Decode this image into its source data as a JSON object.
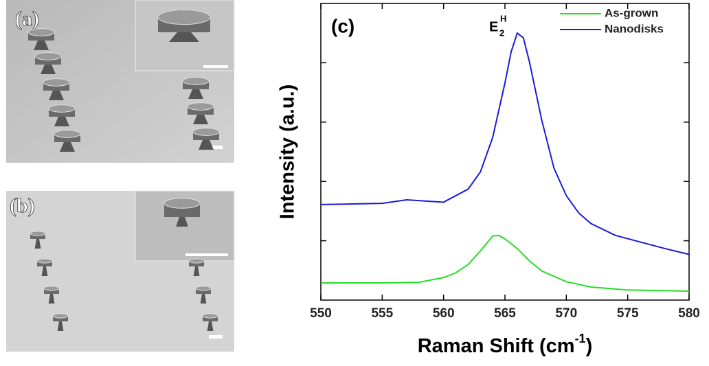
{
  "panels": [
    {
      "label": "(a)"
    },
    {
      "label": "(b)"
    }
  ],
  "chart_data": {
    "type": "line",
    "panel_label": "(c)",
    "peak_label": {
      "base": "E",
      "sub": "2",
      "sup": "H"
    },
    "x_label": {
      "text": "Raman Shift (cm",
      "sup": "-1",
      "end": ")"
    },
    "y_label": "Intensity (a.u.)",
    "xlim": [
      550,
      580
    ],
    "xticks": [
      550,
      555,
      560,
      565,
      570,
      575,
      580
    ],
    "ylim": [
      0,
      5
    ],
    "yticks": [
      1,
      2,
      3,
      4
    ],
    "legend": "upper right",
    "series": [
      {
        "name": "As-grown",
        "color": "#22e022",
        "x": [
          550,
          555,
          558,
          560,
          561,
          562,
          563,
          564,
          564.5,
          565,
          566,
          567,
          568,
          570,
          572,
          575,
          580
        ],
        "values": [
          0.29,
          0.29,
          0.3,
          0.38,
          0.46,
          0.6,
          0.83,
          1.08,
          1.09,
          1.03,
          0.87,
          0.66,
          0.49,
          0.31,
          0.22,
          0.17,
          0.15
        ]
      },
      {
        "name": "Nanodisks",
        "color": "#1a1ad8",
        "x": [
          550,
          555,
          557,
          560,
          561,
          562,
          563,
          564,
          565,
          565.5,
          566,
          566.5,
          567,
          568,
          569,
          570,
          571,
          572,
          574,
          576,
          578,
          580
        ],
        "values": [
          1.61,
          1.63,
          1.69,
          1.65,
          1.76,
          1.87,
          2.16,
          2.74,
          3.66,
          4.18,
          4.5,
          4.42,
          4.01,
          3.03,
          2.22,
          1.76,
          1.47,
          1.29,
          1.09,
          0.98,
          0.87,
          0.77
        ]
      }
    ]
  }
}
